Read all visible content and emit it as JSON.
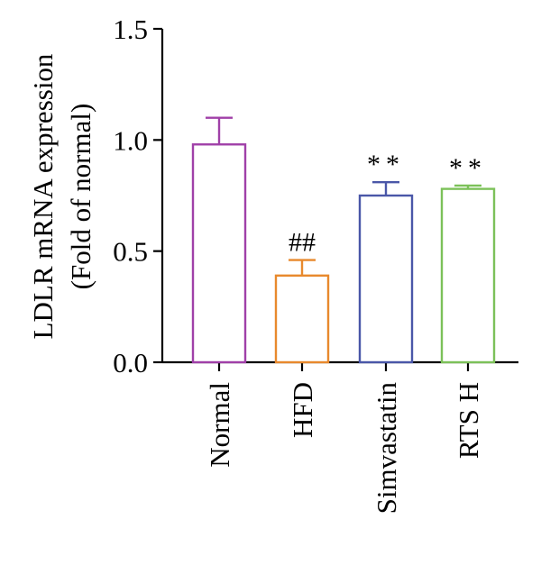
{
  "chart_data": {
    "type": "bar",
    "categories": [
      "Normal",
      "HFD",
      "Simvastatin",
      "RTS H"
    ],
    "values": [
      0.98,
      0.39,
      0.75,
      0.78
    ],
    "errors": [
      0.12,
      0.07,
      0.06,
      0.015
    ],
    "colors": [
      "#a040a8",
      "#e8892d",
      "#4a57a8",
      "#7cc159"
    ],
    "significance": [
      "",
      "##",
      "**",
      "**"
    ],
    "ylabel_line1": "LDLR mRNA expression",
    "ylabel_line2": "(Fold of normal)",
    "ylim": [
      0,
      1.5
    ],
    "yticks": [
      0,
      0.5,
      1.0,
      1.5
    ],
    "ytick_labels": [
      "0.0",
      "0.5",
      "1.0",
      "1.5"
    ],
    "grid": false
  }
}
